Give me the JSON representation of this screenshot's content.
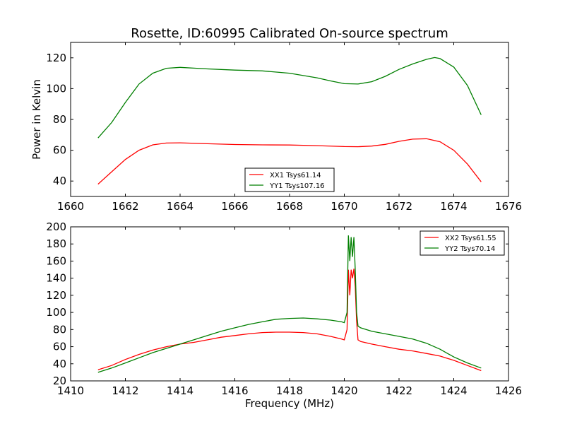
{
  "title": "Rosette, ID:60995 Calibrated On-source spectrum",
  "colors": {
    "xx": "#ff0000",
    "yy": "#007f00",
    "axes": "#000000",
    "background": "#ffffff"
  },
  "chart_data": [
    {
      "type": "line",
      "title": "Rosette, ID:60995 Calibrated On-source spectrum",
      "xlabel": "",
      "ylabel": "Power in Kelvin",
      "xlim": [
        1660,
        1676
      ],
      "ylim": [
        30,
        130
      ],
      "xticks": [
        1660,
        1662,
        1664,
        1666,
        1668,
        1670,
        1672,
        1674,
        1676
      ],
      "yticks": [
        40,
        60,
        80,
        100,
        120
      ],
      "xtick_labels": [
        "1660",
        "1662",
        "1664",
        "1666",
        "1668",
        "1670",
        "1672",
        "1674",
        "1676"
      ],
      "ytick_labels": [
        "40",
        "60",
        "80",
        "100",
        "120"
      ],
      "grid": false,
      "legend_position": "lower-center",
      "series": [
        {
          "name": "XX1 Tsys61.14",
          "color": "#ff0000",
          "x": [
            1661.0,
            1661.5,
            1662.0,
            1662.5,
            1663.0,
            1663.5,
            1664.0,
            1665.0,
            1666.0,
            1667.0,
            1668.0,
            1669.0,
            1670.0,
            1670.5,
            1671.0,
            1671.5,
            1672.0,
            1672.5,
            1673.0,
            1673.5,
            1674.0,
            1674.5,
            1675.0
          ],
          "y": [
            38,
            46,
            54,
            60,
            63.5,
            64.7,
            64.8,
            64.2,
            63.7,
            63.5,
            63.4,
            63.0,
            62.4,
            62.3,
            62.7,
            63.8,
            65.8,
            67.2,
            67.5,
            65.5,
            60.0,
            51.0,
            39.5
          ]
        },
        {
          "name": "YY1 Tsys107.16",
          "color": "#007f00",
          "x": [
            1661.0,
            1661.5,
            1662.0,
            1662.5,
            1663.0,
            1663.5,
            1664.0,
            1665.0,
            1666.0,
            1667.0,
            1668.0,
            1669.0,
            1669.5,
            1670.0,
            1670.5,
            1671.0,
            1671.5,
            1672.0,
            1672.5,
            1673.0,
            1673.3,
            1673.5,
            1674.0,
            1674.5,
            1675.0
          ],
          "y": [
            68,
            78,
            91,
            103,
            110,
            113.2,
            113.8,
            112.8,
            112.0,
            111.5,
            110.0,
            107.0,
            105.0,
            103.2,
            103.0,
            104.5,
            108.0,
            112.5,
            116.0,
            119.0,
            120.2,
            119.5,
            114.0,
            102.0,
            83.0
          ]
        }
      ]
    },
    {
      "type": "line",
      "title": "",
      "xlabel": "Frequency (MHz)",
      "ylabel": "",
      "xlim": [
        1410,
        1426
      ],
      "ylim": [
        20,
        200
      ],
      "xticks": [
        1410,
        1412,
        1414,
        1416,
        1418,
        1420,
        1422,
        1424,
        1426
      ],
      "yticks": [
        20,
        40,
        60,
        80,
        100,
        120,
        140,
        160,
        180,
        200
      ],
      "xtick_labels": [
        "1410",
        "1412",
        "1414",
        "1416",
        "1418",
        "1420",
        "1422",
        "1424",
        "1426"
      ],
      "ytick_labels": [
        "20",
        "40",
        "60",
        "80",
        "100",
        "120",
        "140",
        "160",
        "180",
        "200"
      ],
      "grid": false,
      "legend_position": "top-right",
      "series": [
        {
          "name": "XX2 Tsys61.55",
          "color": "#ff0000",
          "x": [
            1411.0,
            1411.5,
            1412.0,
            1412.5,
            1413.0,
            1413.5,
            1414.0,
            1414.5,
            1415.0,
            1415.5,
            1416.0,
            1416.5,
            1417.0,
            1417.5,
            1418.0,
            1418.5,
            1419.0,
            1419.5,
            1419.9,
            1420.0,
            1420.1,
            1420.15,
            1420.2,
            1420.25,
            1420.3,
            1420.35,
            1420.4,
            1420.45,
            1420.5,
            1420.6,
            1421.0,
            1421.5,
            1422.0,
            1422.5,
            1423.0,
            1423.5,
            1424.0,
            1424.5,
            1425.0
          ],
          "y": [
            33,
            38,
            45,
            51,
            56,
            60,
            63,
            65,
            68,
            71,
            73,
            75,
            76.5,
            77,
            77,
            76.5,
            75,
            72,
            69,
            68,
            80,
            150,
            120,
            150,
            140,
            151,
            130,
            90,
            68,
            66,
            63,
            60,
            57,
            55,
            52,
            49,
            44,
            38,
            32
          ]
        },
        {
          "name": "YY2 Tsys70.14",
          "color": "#007f00",
          "x": [
            1411.0,
            1411.5,
            1412.0,
            1412.5,
            1413.0,
            1413.5,
            1414.0,
            1414.5,
            1415.0,
            1415.5,
            1416.0,
            1416.5,
            1417.0,
            1417.5,
            1418.0,
            1418.5,
            1419.0,
            1419.5,
            1419.9,
            1420.0,
            1420.1,
            1420.15,
            1420.2,
            1420.25,
            1420.3,
            1420.35,
            1420.4,
            1420.45,
            1420.5,
            1420.6,
            1421.0,
            1421.5,
            1422.0,
            1422.5,
            1423.0,
            1423.5,
            1424.0,
            1424.5,
            1425.0
          ],
          "y": [
            30,
            35,
            41,
            47,
            53,
            58,
            63,
            68,
            73,
            78,
            82,
            86,
            89,
            92,
            93,
            93.5,
            92.5,
            91,
            89,
            88,
            100,
            190,
            160,
            188,
            165,
            188,
            150,
            100,
            84,
            82,
            78,
            75,
            72,
            69,
            64,
            57,
            48,
            41,
            35
          ]
        }
      ]
    }
  ]
}
